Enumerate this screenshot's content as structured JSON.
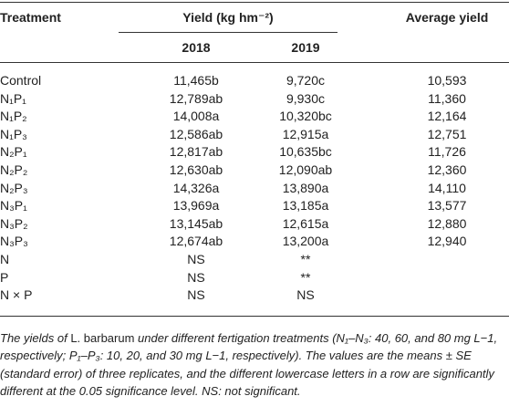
{
  "table": {
    "header": {
      "treatment": "Treatment",
      "yield": "Yield (kg hm⁻²)",
      "average": "Average yield",
      "years": [
        "2018",
        "2019"
      ]
    },
    "rows": [
      [
        "Control",
        "11,465b",
        "9,720c",
        "10,593"
      ],
      [
        "N₁P₁",
        "12,789ab",
        "9,930c",
        "11,360"
      ],
      [
        "N₁P₂",
        "14,008a",
        "10,320bc",
        "12,164"
      ],
      [
        "N₁P₃",
        "12,586ab",
        "12,915a",
        "12,751"
      ],
      [
        "N₂P₁",
        "12,817ab",
        "10,635bc",
        "11,726"
      ],
      [
        "N₂P₂",
        "12,630ab",
        "12,090ab",
        "12,360"
      ],
      [
        "N₂P₃",
        "14,326a",
        "13,890a",
        "14,110"
      ],
      [
        "N₃P₁",
        "13,969a",
        "13,185a",
        "13,577"
      ],
      [
        "N₃P₂",
        "13,145ab",
        "12,615a",
        "12,880"
      ],
      [
        "N₃P₃",
        "12,674ab",
        "13,200a",
        "12,940"
      ],
      [
        "N",
        "NS",
        "**"
      ],
      [
        "P",
        "NS",
        "**"
      ],
      [
        "N × P",
        "NS",
        "NS"
      ]
    ]
  },
  "caption": [
    "The yields of ",
    "L. barbarum",
    " under different fertigation treatments (N₁–N₃: 40, 60, and 80 mg L−1, respectively; P₁–P₃: 10, 20, and 30 mg L−1, respectively). The values are the means ± SE (standard error) of three replicates, and the different lowercase letters in a row are significantly different at the 0.05 significance level. NS: not significant."
  ]
}
